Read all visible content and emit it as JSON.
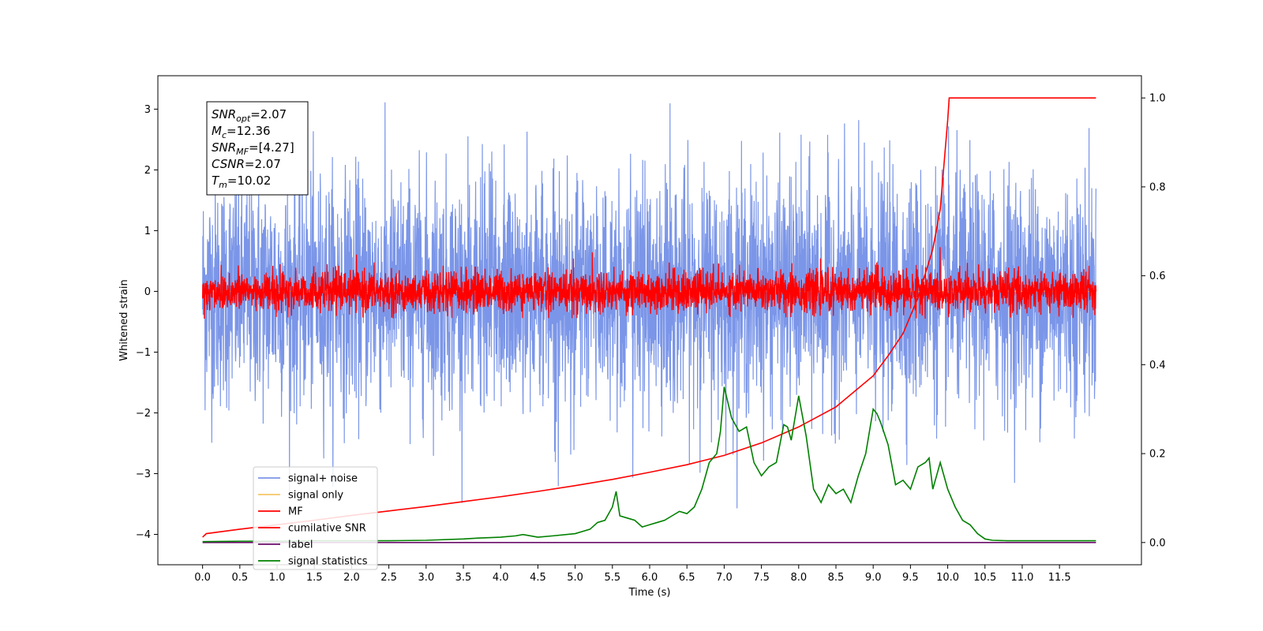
{
  "chart_data": {
    "type": "line",
    "xlabel": "Time (s)",
    "ylabel": "Whitened strain",
    "xlim": [
      -0.6,
      12.6
    ],
    "ylim": [
      -4.5,
      3.55
    ],
    "y2lim": [
      -0.05,
      1.05
    ],
    "x_ticks": [
      0.0,
      0.5,
      1.0,
      1.5,
      2.0,
      2.5,
      3.0,
      3.5,
      4.0,
      4.5,
      5.0,
      5.5,
      6.0,
      6.5,
      7.0,
      7.5,
      8.0,
      8.5,
      9.0,
      9.5,
      10.0,
      10.5,
      11.0,
      11.5
    ],
    "x_tick_labels": [
      "0.0",
      "0.5",
      "1.0",
      "1.5",
      "2.0",
      "2.5",
      "3.0",
      "3.5",
      "4.0",
      "4.5",
      "5.0",
      "5.5",
      "6.0",
      "6.5",
      "7.0",
      "7.5",
      "8.0",
      "8.5",
      "9.0",
      "9.5",
      "10.0",
      "10.5",
      "11.0",
      "11.5"
    ],
    "y_ticks": [
      -4,
      -3,
      -2,
      -1,
      0,
      1,
      2,
      3
    ],
    "y_tick_labels": [
      "−4",
      "−3",
      "−2",
      "−1",
      "0",
      "1",
      "2",
      "3"
    ],
    "y2_ticks": [
      0.0,
      0.2,
      0.4,
      0.6,
      0.8,
      1.0
    ],
    "y2_tick_labels": [
      "0.0",
      "0.2",
      "0.4",
      "0.6",
      "0.8",
      "1.0"
    ],
    "grid": false,
    "legend_placement": "lower-left",
    "annotation": [
      {
        "base": "SNR",
        "sub": "opt",
        "value": "=2.07"
      },
      {
        "base": "M",
        "sub": "c",
        "value": "=12.36"
      },
      {
        "base": "SNR",
        "sub": "MF",
        "value": "=[4.27]"
      },
      {
        "base": "CSNR",
        "sub": "",
        "value": "=2.07"
      },
      {
        "base": "T",
        "sub": "m",
        "value": "=10.02"
      }
    ],
    "series": [
      {
        "name": "signal+ noise",
        "color": "#7b96e8",
        "axis": "left",
        "kind": "noise",
        "x_range": [
          0.0,
          11.99
        ],
        "approx_mean": 0.0,
        "approx_range": [
          -3.6,
          3.2
        ]
      },
      {
        "name": "signal only",
        "color": "#f5c66a",
        "axis": "left",
        "values_note": "",
        "x": [
          0.0,
          11.99
        ],
        "y": [
          0.0,
          0.0
        ]
      },
      {
        "name": "MF",
        "color": "#ff0000",
        "axis": "left",
        "kind": "noise",
        "x_range": [
          0.0,
          11.99
        ],
        "approx_mean": 0.0,
        "approx_range": [
          -0.45,
          1.0
        ]
      },
      {
        "name": "cumilative SNR",
        "color": "#ff0000",
        "axis": "right",
        "x": [
          0.0,
          0.05,
          0.5,
          1.0,
          1.5,
          2.0,
          2.5,
          3.0,
          3.5,
          4.0,
          4.5,
          5.0,
          5.5,
          6.0,
          6.5,
          7.0,
          7.5,
          8.0,
          8.5,
          9.0,
          9.2,
          9.4,
          9.6,
          9.8,
          9.9,
          9.95,
          10.0,
          10.02,
          11.0,
          11.99
        ],
        "y": [
          0.012,
          0.02,
          0.03,
          0.04,
          0.05,
          0.061,
          0.071,
          0.081,
          0.092,
          0.103,
          0.115,
          0.128,
          0.142,
          0.158,
          0.175,
          0.196,
          0.224,
          0.26,
          0.305,
          0.375,
          0.42,
          0.47,
          0.55,
          0.66,
          0.75,
          0.85,
          0.95,
          1.0,
          1.0,
          1.0
        ]
      },
      {
        "name": "label",
        "color": "#6a0d6a",
        "axis": "right",
        "x": [
          0.0,
          11.99
        ],
        "y": [
          0.0,
          0.0
        ]
      },
      {
        "name": "signal statistics",
        "color": "#008000",
        "axis": "right",
        "x": [
          0.0,
          0.5,
          1.0,
          1.5,
          2.0,
          2.5,
          3.0,
          3.5,
          3.7,
          4.0,
          4.2,
          4.3,
          4.5,
          4.7,
          5.0,
          5.1,
          5.2,
          5.3,
          5.4,
          5.5,
          5.55,
          5.6,
          5.7,
          5.8,
          5.9,
          6.0,
          6.1,
          6.2,
          6.3,
          6.4,
          6.5,
          6.6,
          6.7,
          6.8,
          6.9,
          6.95,
          7.0,
          7.1,
          7.2,
          7.3,
          7.4,
          7.5,
          7.6,
          7.7,
          7.8,
          7.85,
          7.9,
          7.95,
          8.0,
          8.1,
          8.2,
          8.3,
          8.4,
          8.5,
          8.6,
          8.7,
          8.8,
          8.9,
          9.0,
          9.05,
          9.1,
          9.2,
          9.3,
          9.4,
          9.5,
          9.6,
          9.7,
          9.75,
          9.8,
          9.9,
          10.0,
          10.1,
          10.2,
          10.3,
          10.4,
          10.5,
          10.6,
          10.8,
          11.0,
          11.5,
          11.99
        ],
        "y": [
          0.002,
          0.003,
          0.003,
          0.004,
          0.004,
          0.004,
          0.005,
          0.008,
          0.01,
          0.012,
          0.015,
          0.018,
          0.012,
          0.015,
          0.02,
          0.025,
          0.03,
          0.045,
          0.05,
          0.08,
          0.115,
          0.06,
          0.055,
          0.05,
          0.035,
          0.04,
          0.045,
          0.05,
          0.06,
          0.07,
          0.065,
          0.08,
          0.12,
          0.18,
          0.2,
          0.25,
          0.35,
          0.28,
          0.25,
          0.26,
          0.18,
          0.15,
          0.17,
          0.18,
          0.265,
          0.26,
          0.23,
          0.28,
          0.33,
          0.24,
          0.12,
          0.09,
          0.13,
          0.11,
          0.12,
          0.09,
          0.15,
          0.2,
          0.3,
          0.29,
          0.27,
          0.22,
          0.13,
          0.14,
          0.12,
          0.17,
          0.18,
          0.19,
          0.12,
          0.18,
          0.12,
          0.08,
          0.05,
          0.04,
          0.02,
          0.008,
          0.005,
          0.004,
          0.004,
          0.004,
          0.004
        ]
      }
    ]
  }
}
